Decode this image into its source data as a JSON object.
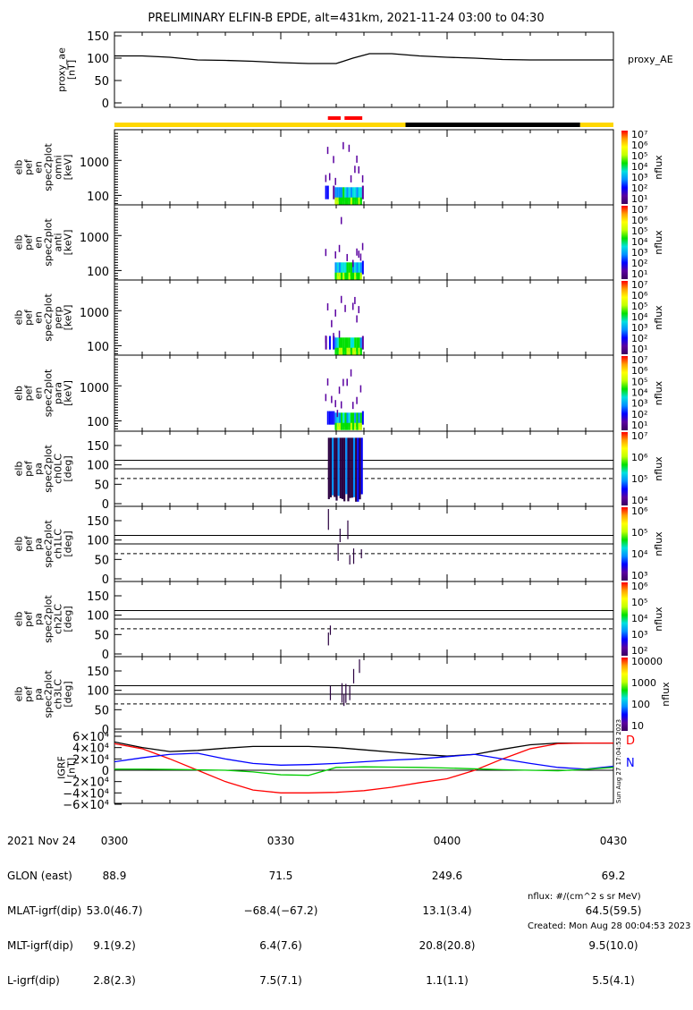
{
  "title": "PRELIMINARY ELFIN-B EPDE, alt=431km, 2021-11-24 03:00 to 04:30",
  "colors": {
    "yellow": "#ffd700",
    "black": "#000000",
    "red": "#ff0000",
    "blue": "#0000ff",
    "green": "#00cc00"
  },
  "chart_data": [
    {
      "type": "line",
      "name": "proxy_ae",
      "ylabel": [
        "proxy_ae",
        "[nT]"
      ],
      "legend": "proxy_AE",
      "yticks": [
        "150",
        "100",
        "50",
        "0"
      ],
      "ylim": [
        0,
        150
      ],
      "x_minutes": [
        0,
        5,
        10,
        15,
        20,
        25,
        30,
        35,
        40,
        43,
        46,
        50,
        55,
        60,
        65,
        70,
        75,
        80,
        85,
        90
      ],
      "values": [
        105,
        105,
        102,
        96,
        95,
        93,
        90,
        88,
        88,
        100,
        110,
        110,
        105,
        102,
        100,
        97,
        96,
        96,
        96,
        96
      ]
    },
    {
      "type": "bar",
      "name": "orbit-bar",
      "segments": [
        {
          "start": 0,
          "end": 52.5,
          "color": "#ffd700"
        },
        {
          "start": 52.5,
          "end": 84,
          "color": "#000000"
        },
        {
          "start": 84,
          "end": 90,
          "color": "#ffd700"
        }
      ],
      "science_zones": [
        {
          "start": 38.5,
          "end": 40.8
        },
        {
          "start": 41.5,
          "end": 44.7
        }
      ]
    },
    {
      "type": "heatmap",
      "panels": [
        {
          "label": [
            "elb",
            "pef",
            "en",
            "spec2plot",
            "omni",
            "[keV]"
          ],
          "kind": "energy",
          "yticks": [
            "1000",
            "100"
          ],
          "cbar": [
            "10⁷",
            "10⁶",
            "10⁵",
            "10⁴",
            "10³",
            "10²",
            "10¹"
          ],
          "cbar_label": "nflux"
        },
        {
          "label": [
            "elb",
            "pef",
            "en",
            "spec2plot",
            "anti",
            "[keV]"
          ],
          "kind": "energy",
          "yticks": [
            "1000",
            "100"
          ],
          "cbar": [
            "10⁷",
            "10⁶",
            "10⁵",
            "10⁴",
            "10³",
            "10²",
            "10¹"
          ],
          "cbar_label": "nflux"
        },
        {
          "label": [
            "elb",
            "pef",
            "en",
            "spec2plot",
            "perp",
            "[keV]"
          ],
          "kind": "energy",
          "yticks": [
            "1000",
            "100"
          ],
          "cbar": [
            "10⁷",
            "10⁶",
            "10⁵",
            "10⁴",
            "10³",
            "10²",
            "10¹"
          ],
          "cbar_label": "nflux"
        },
        {
          "label": [
            "elb",
            "pef",
            "en",
            "spec2plot",
            "para",
            "[keV]"
          ],
          "kind": "energy",
          "yticks": [
            "1000",
            "100"
          ],
          "cbar": [
            "10⁷",
            "10⁶",
            "10⁵",
            "10⁴",
            "10³",
            "10²",
            "10¹"
          ],
          "cbar_label": "nflux"
        },
        {
          "label": [
            "elb",
            "pef",
            "pa",
            "spec2plot",
            "ch0LC",
            "[deg]"
          ],
          "kind": "pa",
          "yticks": [
            "150",
            "100",
            "50",
            "0"
          ],
          "cbar": [
            "10⁷",
            "10⁶",
            "10⁵",
            "10⁴"
          ],
          "cbar_label": "nflux"
        },
        {
          "label": [
            "elb",
            "pef",
            "pa",
            "spec2plot",
            "ch1LC",
            "[deg]"
          ],
          "kind": "pa",
          "yticks": [
            "150",
            "100",
            "50",
            "0"
          ],
          "cbar": [
            "10⁶",
            "10⁵",
            "10⁴",
            "10³"
          ],
          "cbar_label": "nflux"
        },
        {
          "label": [
            "elb",
            "pef",
            "pa",
            "spec2plot",
            "ch2LC",
            "[deg]"
          ],
          "kind": "pa",
          "yticks": [
            "150",
            "100",
            "50",
            "0"
          ],
          "cbar": [
            "10⁶",
            "10⁵",
            "10⁴",
            "10³",
            "10²"
          ],
          "cbar_label": "nflux"
        },
        {
          "label": [
            "elb",
            "pef",
            "pa",
            "spec2plot",
            "ch3LC",
            "[deg]"
          ],
          "kind": "pa",
          "yticks": [
            "150",
            "100",
            "50",
            "0"
          ],
          "cbar": [
            "10000",
            "1000",
            "100",
            "10"
          ],
          "cbar_label": "nflux"
        }
      ],
      "active_interval_minutes": [
        37,
        45
      ]
    },
    {
      "type": "line",
      "name": "IGRF",
      "ylabel": [
        "IGRF",
        "[nT]"
      ],
      "yticks": [
        "6×10⁴",
        "4×10⁴",
        "2×10⁴",
        "0",
        "−2×10⁴",
        "−4×10⁴",
        "−6×10⁴"
      ],
      "ylim": [
        -60000,
        60000
      ],
      "x_minutes": [
        0,
        5,
        10,
        15,
        20,
        25,
        30,
        35,
        40,
        45,
        50,
        55,
        60,
        65,
        70,
        75,
        80,
        85,
        90
      ],
      "series": [
        {
          "name": "total",
          "color": "#000000",
          "values": [
            50000,
            40000,
            33000,
            35000,
            39000,
            42000,
            42000,
            42000,
            40000,
            36000,
            32000,
            28000,
            25000,
            28000,
            37000,
            45000,
            48000,
            48000,
            48000
          ]
        },
        {
          "name": "D",
          "color": "#ff0000",
          "values": [
            47000,
            38000,
            20000,
            0,
            -20000,
            -35000,
            -40000,
            -40000,
            -39000,
            -36000,
            -30000,
            -22000,
            -15000,
            0,
            20000,
            38000,
            47000,
            48000,
            48000
          ]
        },
        {
          "name": "N",
          "color": "#0000ff",
          "values": [
            15000,
            22000,
            28000,
            30000,
            20000,
            12000,
            9000,
            10000,
            12000,
            15000,
            18000,
            20000,
            24000,
            28000,
            20000,
            12000,
            5000,
            2000,
            7000
          ]
        },
        {
          "name": "Z",
          "color": "#00cc00",
          "values": [
            2000,
            2000,
            1500,
            800,
            0,
            -3000,
            -8000,
            -9000,
            5000,
            6000,
            5500,
            5000,
            4000,
            2500,
            1000,
            0,
            -1000,
            1500,
            5000
          ]
        }
      ],
      "legend": [
        "D",
        "N"
      ]
    }
  ],
  "xaxis": {
    "row_labels": [
      "2021 Nov 24",
      "GLON (east)",
      "MLAT-igrf(dip)",
      "MLT-igrf(dip)",
      "L-igrf(dip)"
    ],
    "columns": [
      {
        "time": "0300",
        "glon": "88.9",
        "mlat": "53.0(46.7)",
        "mlt": "9.1(9.2)",
        "l": "2.8(2.3)"
      },
      {
        "time": "0330",
        "glon": "71.5",
        "mlat": "−68.4(−67.2)",
        "mlt": "6.4(7.6)",
        "l": "7.5(7.1)"
      },
      {
        "time": "0400",
        "glon": "249.6",
        "mlat": "13.1(3.4)",
        "mlt": "20.8(20.8)",
        "l": "1.1(1.1)"
      },
      {
        "time": "0430",
        "glon": "69.2",
        "mlat": "64.5(59.5)",
        "mlt": "9.5(10.0)",
        "l": "5.5(4.1)"
      }
    ]
  },
  "footer": {
    "units": "nflux: #/(cm^2 s sr MeV)",
    "created": "Created: Mon Aug 28 00:04:53 2023",
    "side_stamp": "Sun Aug 27 17:04:53 2023"
  }
}
